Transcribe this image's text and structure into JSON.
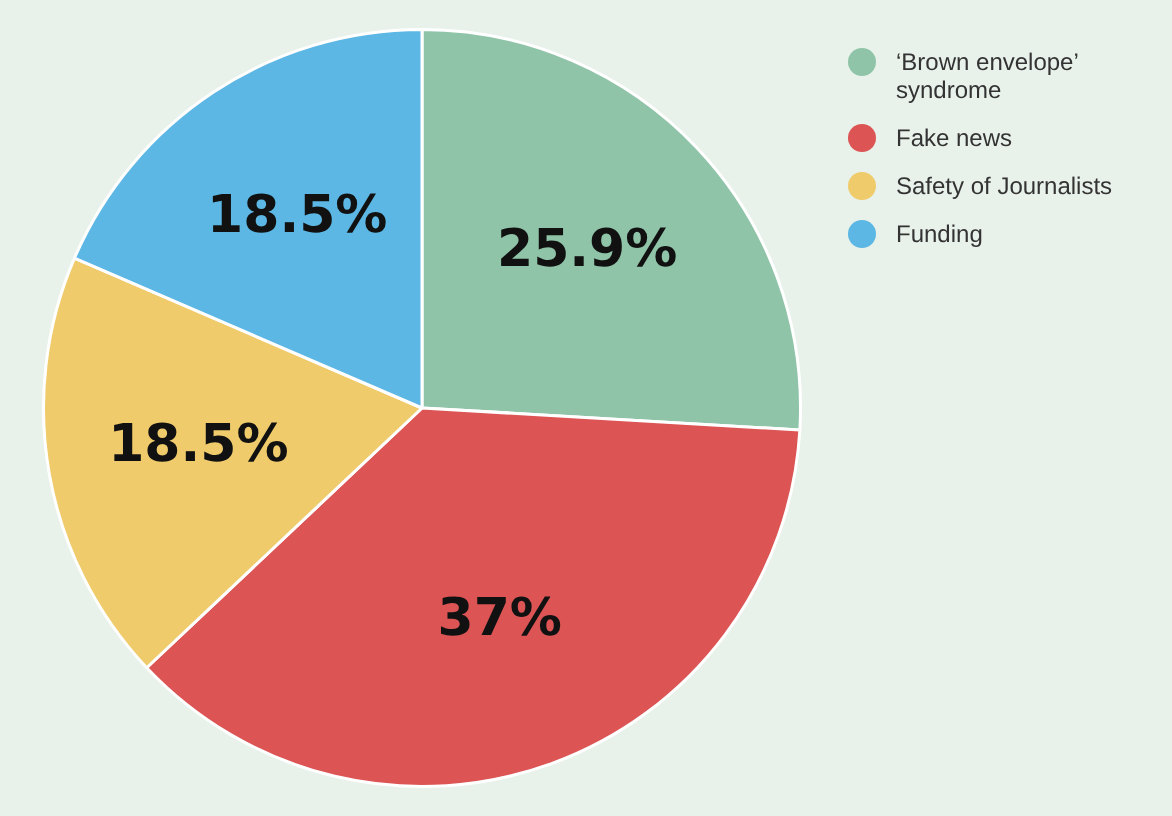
{
  "chart_data": {
    "type": "pie",
    "categories": [
      "‘Brown envelope’ syndrome",
      "Fake news",
      "Safety of Journalists",
      "Funding"
    ],
    "values": [
      25.9,
      37,
      18.5,
      18.5
    ],
    "colors": [
      "#8fc4a8",
      "#dc5454",
      "#efcb6b",
      "#5cb7e4"
    ],
    "value_labels": [
      "25.9%",
      "37%",
      "18.5%",
      "18.5%"
    ],
    "legend": "top right"
  }
}
